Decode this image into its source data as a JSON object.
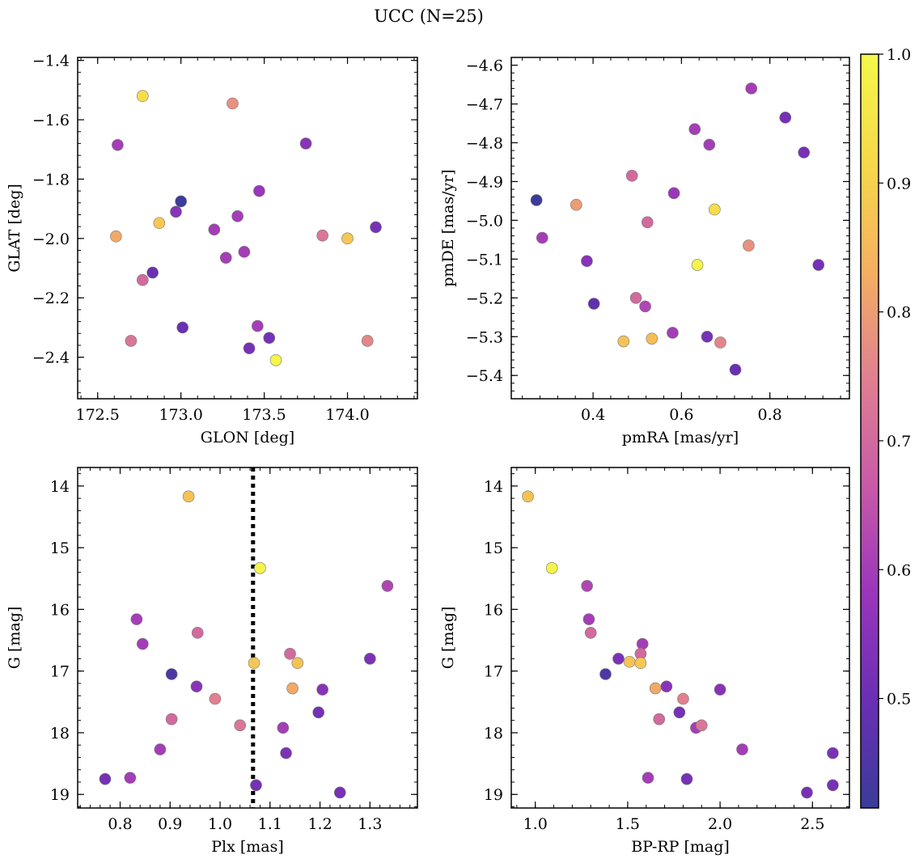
{
  "figure_title": "UCC (N=25)",
  "colorbar": {
    "range": [
      0.415,
      1.0
    ],
    "ticks": [
      0.5,
      0.6,
      0.7,
      0.8,
      0.9,
      1.0
    ],
    "tick_labels": [
      "0.5",
      "0.6",
      "0.7",
      "0.8",
      "0.9",
      "1.0"
    ],
    "colormap": "plasma",
    "stops": [
      "#3a3c99",
      "#6a2fb4",
      "#9a36bb",
      "#c85aa8",
      "#e08090",
      "#f4b060",
      "#f7d84a",
      "#f4f84a"
    ]
  },
  "chart_data": [
    {
      "type": "scatter",
      "name": "position",
      "xlabel": "GLON [deg]",
      "ylabel": "GLAT [deg]",
      "xlim": [
        172.38,
        174.42
      ],
      "ylim": [
        -2.54,
        -1.39
      ],
      "xticks": [
        172.5,
        173.0,
        173.5,
        174.0
      ],
      "xtick_labels": [
        "172.5",
        "173.0",
        "173.5",
        "174.0"
      ],
      "yticks": [
        -2.4,
        -2.2,
        -2.0,
        -1.8,
        -1.6,
        -1.4
      ],
      "ytick_labels": [
        "−2.4",
        "−2.2",
        "−2.0",
        "−1.8",
        "−1.6",
        "−1.4"
      ],
      "points": [
        {
          "x": 172.77,
          "y": -1.52,
          "c": 0.93
        },
        {
          "x": 173.31,
          "y": -1.545,
          "c": 0.78
        },
        {
          "x": 172.62,
          "y": -1.685,
          "c": 0.6
        },
        {
          "x": 173.75,
          "y": -1.68,
          "c": 0.55
        },
        {
          "x": 173.47,
          "y": -1.84,
          "c": 0.58
        },
        {
          "x": 173.0,
          "y": -1.875,
          "c": 0.42
        },
        {
          "x": 172.97,
          "y": -1.91,
          "c": 0.55
        },
        {
          "x": 173.34,
          "y": -1.925,
          "c": 0.6
        },
        {
          "x": 172.87,
          "y": -1.948,
          "c": 0.88
        },
        {
          "x": 174.17,
          "y": -1.962,
          "c": 0.52
        },
        {
          "x": 173.2,
          "y": -1.97,
          "c": 0.6
        },
        {
          "x": 172.61,
          "y": -1.993,
          "c": 0.82
        },
        {
          "x": 173.85,
          "y": -1.99,
          "c": 0.73
        },
        {
          "x": 174.0,
          "y": -2.0,
          "c": 0.88
        },
        {
          "x": 173.38,
          "y": -2.045,
          "c": 0.6
        },
        {
          "x": 173.27,
          "y": -2.065,
          "c": 0.6
        },
        {
          "x": 172.83,
          "y": -2.115,
          "c": 0.5
        },
        {
          "x": 172.77,
          "y": -2.14,
          "c": 0.7
        },
        {
          "x": 173.46,
          "y": -2.295,
          "c": 0.6
        },
        {
          "x": 173.01,
          "y": -2.3,
          "c": 0.5
        },
        {
          "x": 173.53,
          "y": -2.335,
          "c": 0.52
        },
        {
          "x": 172.7,
          "y": -2.345,
          "c": 0.73
        },
        {
          "x": 174.12,
          "y": -2.345,
          "c": 0.76
        },
        {
          "x": 173.41,
          "y": -2.37,
          "c": 0.52
        },
        {
          "x": 173.57,
          "y": -2.41,
          "c": 0.99
        }
      ]
    },
    {
      "type": "scatter",
      "name": "proper-motion",
      "xlabel": "pmRA [mas/yr]",
      "ylabel": "pmDE [mas/yr]",
      "xlim": [
        0.215,
        0.98
      ],
      "ylim": [
        -5.46,
        -4.58
      ],
      "xticks": [
        0.4,
        0.6,
        0.8
      ],
      "xtick_labels": [
        "0.4",
        "0.6",
        "0.8"
      ],
      "yticks": [
        -5.4,
        -5.3,
        -5.2,
        -5.1,
        -5.0,
        -4.9,
        -4.8,
        -4.7,
        -4.6
      ],
      "ytick_labels": [
        "−5.4",
        "−5.3",
        "−5.2",
        "−5.1",
        "−5.0",
        "−4.9",
        "−4.8",
        "−4.7",
        "−4.6"
      ],
      "points": [
        {
          "x": 0.758,
          "y": -4.66,
          "c": 0.6
        },
        {
          "x": 0.835,
          "y": -4.735,
          "c": 0.52
        },
        {
          "x": 0.63,
          "y": -4.765,
          "c": 0.6
        },
        {
          "x": 0.663,
          "y": -4.805,
          "c": 0.6
        },
        {
          "x": 0.877,
          "y": -4.825,
          "c": 0.52
        },
        {
          "x": 0.488,
          "y": -4.885,
          "c": 0.7
        },
        {
          "x": 0.583,
          "y": -4.93,
          "c": 0.58
        },
        {
          "x": 0.272,
          "y": -4.948,
          "c": 0.42
        },
        {
          "x": 0.362,
          "y": -4.96,
          "c": 0.8
        },
        {
          "x": 0.675,
          "y": -4.972,
          "c": 0.93
        },
        {
          "x": 0.523,
          "y": -5.005,
          "c": 0.7
        },
        {
          "x": 0.285,
          "y": -5.045,
          "c": 0.6
        },
        {
          "x": 0.752,
          "y": -5.065,
          "c": 0.78
        },
        {
          "x": 0.386,
          "y": -5.105,
          "c": 0.55
        },
        {
          "x": 0.91,
          "y": -5.115,
          "c": 0.52
        },
        {
          "x": 0.636,
          "y": -5.115,
          "c": 0.99
        },
        {
          "x": 0.497,
          "y": -5.2,
          "c": 0.7
        },
        {
          "x": 0.518,
          "y": -5.222,
          "c": 0.62
        },
        {
          "x": 0.402,
          "y": -5.215,
          "c": 0.48
        },
        {
          "x": 0.58,
          "y": -5.29,
          "c": 0.6
        },
        {
          "x": 0.658,
          "y": -5.3,
          "c": 0.52
        },
        {
          "x": 0.469,
          "y": -5.312,
          "c": 0.87
        },
        {
          "x": 0.533,
          "y": -5.305,
          "c": 0.86
        },
        {
          "x": 0.688,
          "y": -5.315,
          "c": 0.76
        },
        {
          "x": 0.722,
          "y": -5.385,
          "c": 0.5
        }
      ]
    },
    {
      "type": "scatter",
      "name": "parallax-magnitude",
      "xlabel": "Plx [mas]",
      "ylabel": "G [mag]",
      "xlim": [
        0.715,
        1.395
      ],
      "ylim": [
        19.22,
        13.7
      ],
      "xticks": [
        0.8,
        0.9,
        1.0,
        1.1,
        1.2,
        1.3
      ],
      "xtick_labels": [
        "0.8",
        "0.9",
        "1.0",
        "1.1",
        "1.2",
        "1.3"
      ],
      "yticks": [
        14,
        15,
        16,
        17,
        18,
        19
      ],
      "ytick_labels": [
        "14",
        "15",
        "16",
        "17",
        "18",
        "19"
      ],
      "vline": 1.066,
      "points": [
        {
          "x": 0.937,
          "y": 14.17,
          "c": 0.87
        },
        {
          "x": 1.08,
          "y": 15.33,
          "c": 0.99
        },
        {
          "x": 1.335,
          "y": 15.62,
          "c": 0.62
        },
        {
          "x": 0.833,
          "y": 16.16,
          "c": 0.6
        },
        {
          "x": 0.955,
          "y": 16.38,
          "c": 0.7
        },
        {
          "x": 0.845,
          "y": 16.56,
          "c": 0.6
        },
        {
          "x": 1.14,
          "y": 16.72,
          "c": 0.7
        },
        {
          "x": 1.3,
          "y": 16.8,
          "c": 0.53
        },
        {
          "x": 1.068,
          "y": 16.87,
          "c": 0.88
        },
        {
          "x": 1.155,
          "y": 16.87,
          "c": 0.87
        },
        {
          "x": 0.903,
          "y": 17.05,
          "c": 0.45
        },
        {
          "x": 0.953,
          "y": 17.25,
          "c": 0.55
        },
        {
          "x": 1.145,
          "y": 17.28,
          "c": 0.82
        },
        {
          "x": 1.205,
          "y": 17.3,
          "c": 0.55
        },
        {
          "x": 0.99,
          "y": 17.45,
          "c": 0.75
        },
        {
          "x": 1.197,
          "y": 17.67,
          "c": 0.52
        },
        {
          "x": 0.903,
          "y": 17.78,
          "c": 0.7
        },
        {
          "x": 1.04,
          "y": 17.88,
          "c": 0.73
        },
        {
          "x": 1.126,
          "y": 17.92,
          "c": 0.6
        },
        {
          "x": 0.88,
          "y": 18.27,
          "c": 0.6
        },
        {
          "x": 1.132,
          "y": 18.33,
          "c": 0.53
        },
        {
          "x": 0.77,
          "y": 18.75,
          "c": 0.52
        },
        {
          "x": 0.82,
          "y": 18.73,
          "c": 0.6
        },
        {
          "x": 1.072,
          "y": 18.85,
          "c": 0.52
        },
        {
          "x": 1.24,
          "y": 18.97,
          "c": 0.52
        }
      ]
    },
    {
      "type": "scatter",
      "name": "color-magnitude",
      "xlabel": "BP-RP [mag]",
      "ylabel": "G [mag]",
      "xlim": [
        0.87,
        2.7
      ],
      "ylim": [
        19.22,
        13.7
      ],
      "xticks": [
        1.0,
        1.5,
        2.0,
        2.5
      ],
      "xtick_labels": [
        "1.0",
        "1.5",
        "2.0",
        "2.5"
      ],
      "yticks": [
        14,
        15,
        16,
        17,
        18,
        19
      ],
      "ytick_labels": [
        "14",
        "15",
        "16",
        "17",
        "18",
        "19"
      ],
      "points": [
        {
          "x": 0.96,
          "y": 14.17,
          "c": 0.87
        },
        {
          "x": 1.09,
          "y": 15.33,
          "c": 0.99
        },
        {
          "x": 1.28,
          "y": 15.62,
          "c": 0.62
        },
        {
          "x": 1.29,
          "y": 16.16,
          "c": 0.6
        },
        {
          "x": 1.3,
          "y": 16.38,
          "c": 0.7
        },
        {
          "x": 1.58,
          "y": 16.56,
          "c": 0.6
        },
        {
          "x": 1.57,
          "y": 16.72,
          "c": 0.7
        },
        {
          "x": 1.45,
          "y": 16.8,
          "c": 0.53
        },
        {
          "x": 1.51,
          "y": 16.85,
          "c": 0.87
        },
        {
          "x": 1.57,
          "y": 16.87,
          "c": 0.88
        },
        {
          "x": 1.38,
          "y": 17.05,
          "c": 0.45
        },
        {
          "x": 1.71,
          "y": 17.25,
          "c": 0.55
        },
        {
          "x": 1.65,
          "y": 17.28,
          "c": 0.82
        },
        {
          "x": 2.0,
          "y": 17.3,
          "c": 0.55
        },
        {
          "x": 1.8,
          "y": 17.45,
          "c": 0.75
        },
        {
          "x": 1.78,
          "y": 17.67,
          "c": 0.52
        },
        {
          "x": 1.67,
          "y": 17.78,
          "c": 0.7
        },
        {
          "x": 1.9,
          "y": 17.88,
          "c": 0.73
        },
        {
          "x": 1.87,
          "y": 17.92,
          "c": 0.6
        },
        {
          "x": 2.12,
          "y": 18.27,
          "c": 0.6
        },
        {
          "x": 2.61,
          "y": 18.33,
          "c": 0.53
        },
        {
          "x": 1.61,
          "y": 18.73,
          "c": 0.6
        },
        {
          "x": 1.82,
          "y": 18.75,
          "c": 0.52
        },
        {
          "x": 2.61,
          "y": 18.85,
          "c": 0.52
        },
        {
          "x": 2.47,
          "y": 18.97,
          "c": 0.52
        }
      ]
    }
  ]
}
